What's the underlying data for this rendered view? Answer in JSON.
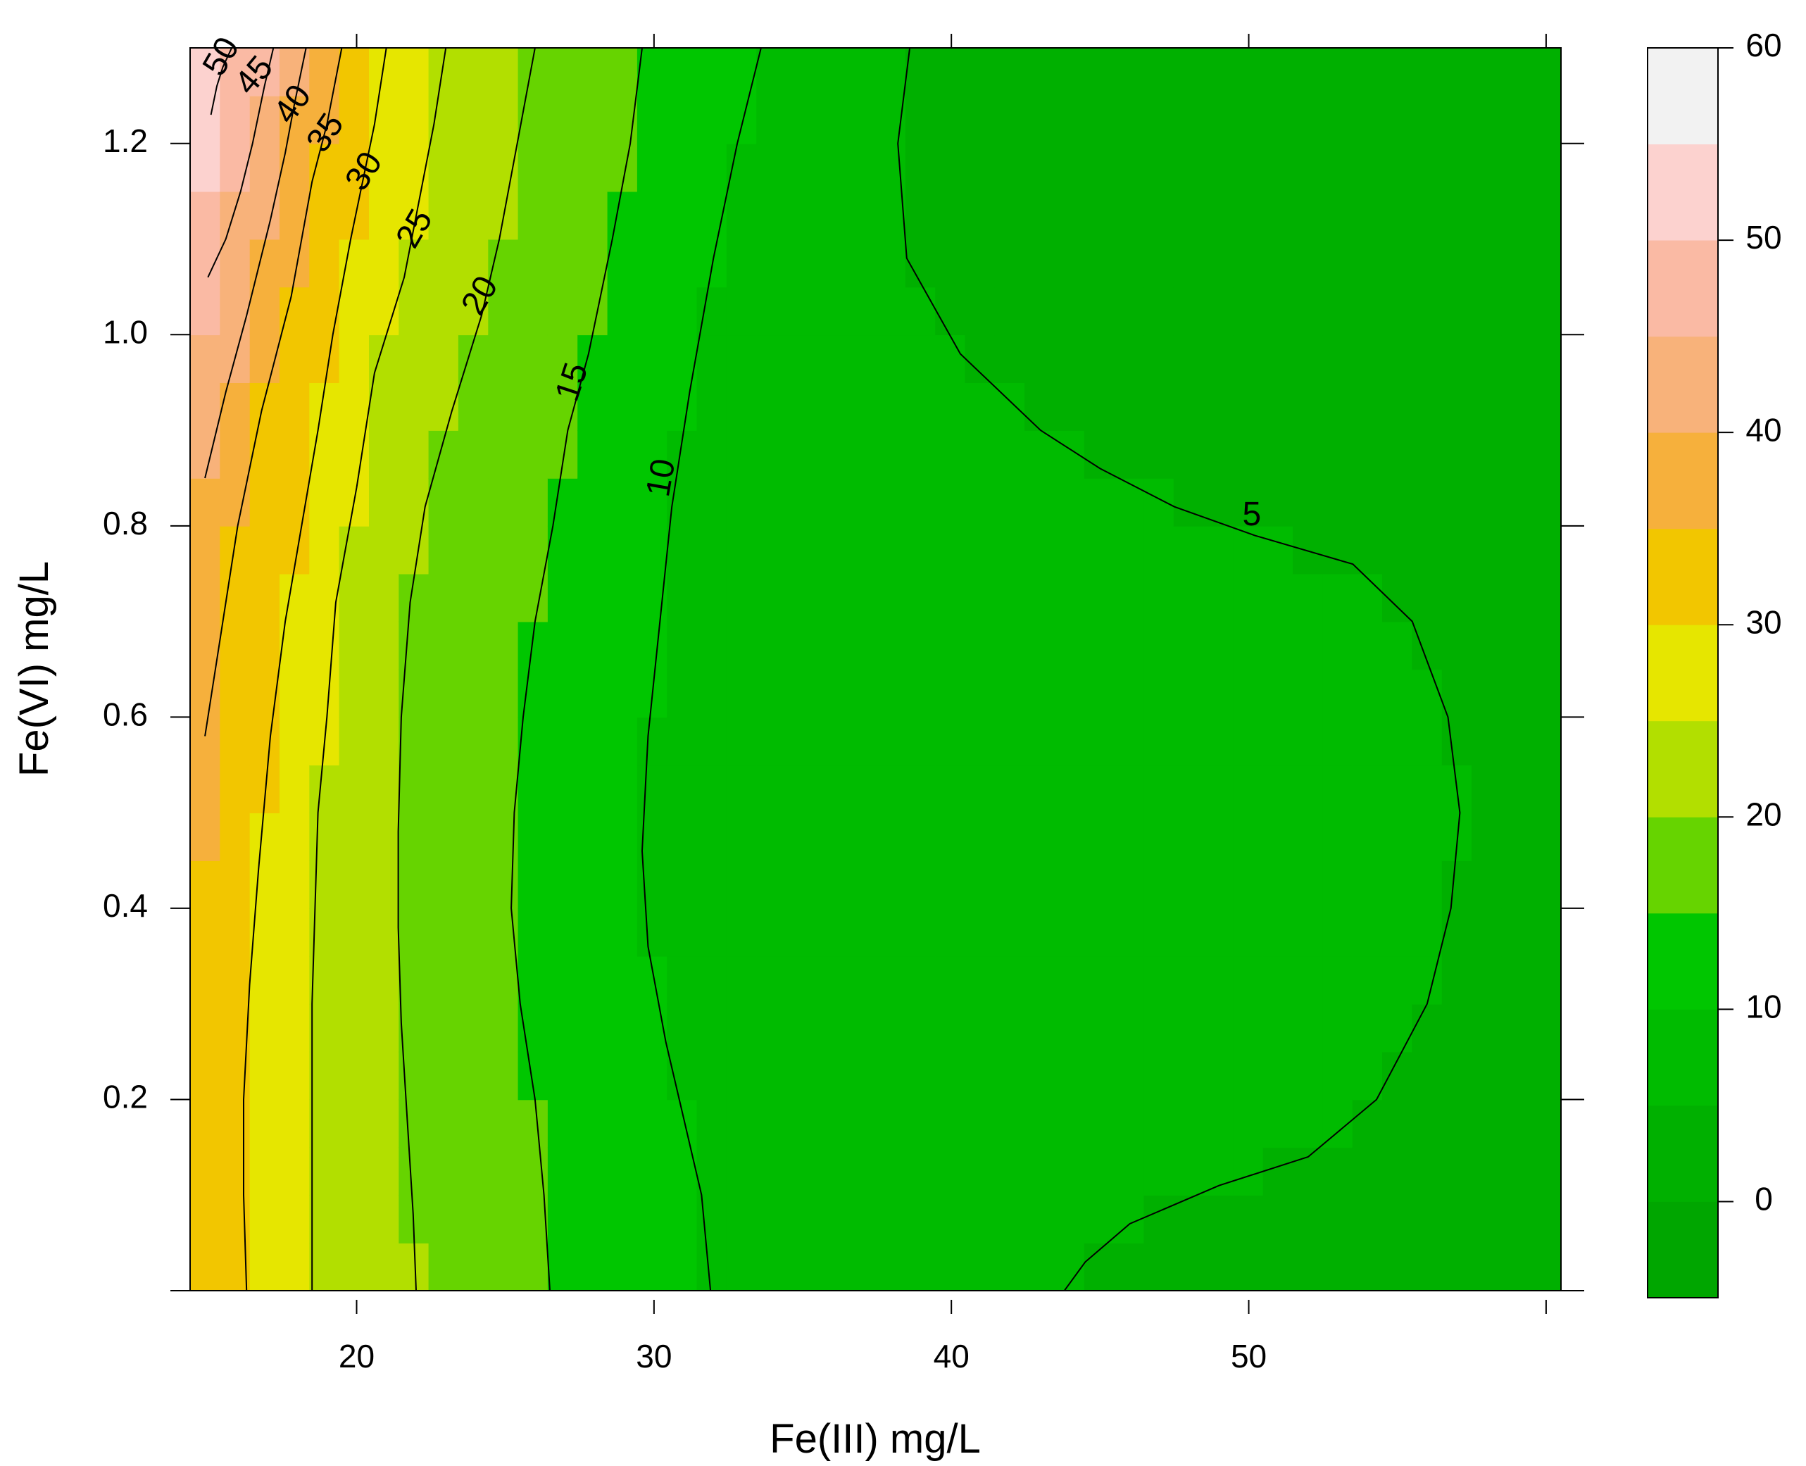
{
  "chart_data": {
    "type": "contour",
    "xlabel": "Fe(III) mg/L",
    "ylabel": "Fe(VI) mg/L",
    "xlim": [
      14.4,
      60.5
    ],
    "ylim": [
      0.0,
      1.3
    ],
    "x_ticks": [
      20,
      30,
      40,
      50
    ],
    "x_ticks_top": [
      20,
      30,
      40,
      50,
      60
    ],
    "y_ticks": [
      0.2,
      0.4,
      0.6,
      0.8,
      1.0,
      1.2
    ],
    "y_ticks_all": [
      0.0,
      0.2,
      0.4,
      0.6,
      0.8,
      1.0,
      1.2
    ],
    "y_tick_labels": [
      "0.2",
      "0.4",
      "0.6",
      "0.8",
      "1.0",
      "1.2"
    ],
    "colorbar": {
      "levels": [
        -5,
        0,
        5,
        10,
        15,
        20,
        25,
        30,
        35,
        40,
        45,
        50,
        55,
        60
      ],
      "tick_values": [
        0,
        10,
        20,
        30,
        40,
        50,
        60
      ],
      "tick_labels": [
        "0",
        "10",
        "20",
        "30",
        "40",
        "50",
        "60"
      ],
      "colors": [
        "#00a600",
        "#00b000",
        "#00bb00",
        "#00c600",
        "#66d400",
        "#b2df00",
        "#e6e600",
        "#f2c600",
        "#f6b03c",
        "#f8b27a",
        "#fabaa4",
        "#fcd2cf",
        "#f2f2f2"
      ]
    },
    "contours": [
      {
        "level": 5,
        "label": "5",
        "segments": [
          [
            [
              38.6,
              1.3
            ],
            [
              38.2,
              1.2
            ],
            [
              38.5,
              1.08
            ],
            [
              40.3,
              0.98
            ],
            [
              43.0,
              0.9
            ],
            [
              45.0,
              0.86
            ],
            [
              47.5,
              0.82
            ],
            [
              50.2,
              0.79
            ],
            [
              53.5,
              0.76
            ],
            [
              55.5,
              0.7
            ],
            [
              56.7,
              0.6
            ],
            [
              57.1,
              0.5
            ],
            [
              56.8,
              0.4
            ],
            [
              56.0,
              0.3
            ],
            [
              54.3,
              0.2
            ],
            [
              52.0,
              0.14
            ],
            [
              49.0,
              0.11
            ],
            [
              46.0,
              0.07
            ],
            [
              44.5,
              0.03
            ],
            [
              43.8,
              0.0
            ]
          ]
        ]
      },
      {
        "level": 10,
        "label": "10",
        "segments": [
          [
            [
              33.6,
              1.3
            ],
            [
              32.8,
              1.2
            ],
            [
              32.0,
              1.08
            ],
            [
              31.2,
              0.94
            ],
            [
              30.6,
              0.82
            ],
            [
              30.2,
              0.7
            ],
            [
              29.8,
              0.58
            ],
            [
              29.6,
              0.46
            ],
            [
              29.8,
              0.36
            ],
            [
              30.4,
              0.26
            ],
            [
              31.0,
              0.18
            ],
            [
              31.6,
              0.1
            ],
            [
              31.9,
              0.0
            ]
          ]
        ]
      },
      {
        "level": 15,
        "label": "15",
        "segments": [
          [
            [
              29.6,
              1.3
            ],
            [
              29.2,
              1.2
            ],
            [
              28.6,
              1.1
            ],
            [
              27.8,
              0.98
            ],
            [
              27.1,
              0.9
            ],
            [
              26.6,
              0.8
            ],
            [
              26.0,
              0.7
            ],
            [
              25.6,
              0.6
            ],
            [
              25.3,
              0.5
            ],
            [
              25.2,
              0.4
            ],
            [
              25.5,
              0.3
            ],
            [
              26.0,
              0.2
            ],
            [
              26.3,
              0.1
            ],
            [
              26.5,
              0.0
            ]
          ]
        ]
      },
      {
        "level": 20,
        "label": "20",
        "segments": [
          [
            [
              26.0,
              1.3
            ],
            [
              25.4,
              1.2
            ],
            [
              24.8,
              1.1
            ],
            [
              24.2,
              1.02
            ],
            [
              23.2,
              0.92
            ],
            [
              22.3,
              0.82
            ],
            [
              21.8,
              0.72
            ],
            [
              21.5,
              0.6
            ],
            [
              21.4,
              0.48
            ],
            [
              21.4,
              0.38
            ],
            [
              21.5,
              0.28
            ],
            [
              21.7,
              0.18
            ],
            [
              21.9,
              0.08
            ],
            [
              22.0,
              0.0
            ]
          ]
        ]
      },
      {
        "level": 25,
        "label": "25",
        "segments": [
          [
            [
              23.0,
              1.3
            ],
            [
              22.6,
              1.22
            ],
            [
              22.1,
              1.14
            ],
            [
              21.6,
              1.06
            ],
            [
              20.6,
              0.96
            ],
            [
              20.0,
              0.84
            ],
            [
              19.3,
              0.72
            ],
            [
              19.0,
              0.6
            ],
            [
              18.7,
              0.5
            ],
            [
              18.6,
              0.4
            ],
            [
              18.5,
              0.3
            ],
            [
              18.5,
              0.2
            ],
            [
              18.5,
              0.1
            ],
            [
              18.5,
              0.0
            ]
          ]
        ]
      },
      {
        "level": 30,
        "label": "30",
        "segments": [
          [
            [
              21.0,
              1.3
            ],
            [
              20.6,
              1.22
            ],
            [
              20.2,
              1.16
            ],
            [
              19.8,
              1.1
            ],
            [
              19.2,
              1.0
            ],
            [
              18.7,
              0.9
            ],
            [
              17.6,
              0.7
            ],
            [
              17.1,
              0.58
            ],
            [
              16.7,
              0.44
            ],
            [
              16.4,
              0.32
            ],
            [
              16.2,
              0.2
            ],
            [
              16.2,
              0.1
            ],
            [
              16.3,
              0.0
            ]
          ]
        ]
      },
      {
        "level": 35,
        "label": "35",
        "segments": [
          [
            [
              19.5,
              1.3
            ],
            [
              19.0,
              1.22
            ],
            [
              18.5,
              1.16
            ],
            [
              17.8,
              1.04
            ],
            [
              16.8,
              0.92
            ],
            [
              16.0,
              0.8
            ],
            [
              15.5,
              0.7
            ],
            [
              14.9,
              0.58
            ]
          ]
        ]
      },
      {
        "level": 40,
        "label": "40",
        "segments": [
          [
            [
              18.3,
              1.3
            ],
            [
              17.9,
              1.24
            ],
            [
              17.6,
              1.19
            ],
            [
              17.1,
              1.12
            ],
            [
              16.3,
              1.02
            ],
            [
              15.6,
              0.94
            ],
            [
              14.9,
              0.85
            ]
          ]
        ]
      },
      {
        "level": 45,
        "label": "45",
        "segments": [
          [
            [
              17.2,
              1.3
            ],
            [
              16.9,
              1.26
            ],
            [
              16.5,
              1.2
            ],
            [
              16.1,
              1.15
            ],
            [
              15.6,
              1.1
            ],
            [
              15.0,
              1.06
            ]
          ]
        ]
      },
      {
        "level": 50,
        "label": "50",
        "segments": [
          [
            [
              15.8,
              1.3
            ],
            [
              15.5,
              1.28
            ],
            [
              15.3,
              1.26
            ],
            [
              15.1,
              1.23
            ]
          ]
        ]
      }
    ],
    "contour_labels": [
      {
        "text": "5",
        "x": 50.1,
        "y": 0.81,
        "angle": 0
      },
      {
        "text": "10",
        "x": 30.3,
        "y": 0.85,
        "angle": -80
      },
      {
        "text": "15",
        "x": 27.3,
        "y": 0.95,
        "angle": -72
      },
      {
        "text": "20",
        "x": 24.2,
        "y": 1.04,
        "angle": -60
      },
      {
        "text": "25",
        "x": 22.0,
        "y": 1.11,
        "angle": -60
      },
      {
        "text": "30",
        "x": 20.3,
        "y": 1.17,
        "angle": -58
      },
      {
        "text": "35",
        "x": 19.0,
        "y": 1.21,
        "angle": -56
      },
      {
        "text": "40",
        "x": 17.9,
        "y": 1.24,
        "angle": -55
      },
      {
        "text": "45",
        "x": 16.6,
        "y": 1.27,
        "angle": -50
      },
      {
        "text": "50",
        "x": 15.5,
        "y": 1.29,
        "angle": -60
      }
    ],
    "grid": false
  }
}
